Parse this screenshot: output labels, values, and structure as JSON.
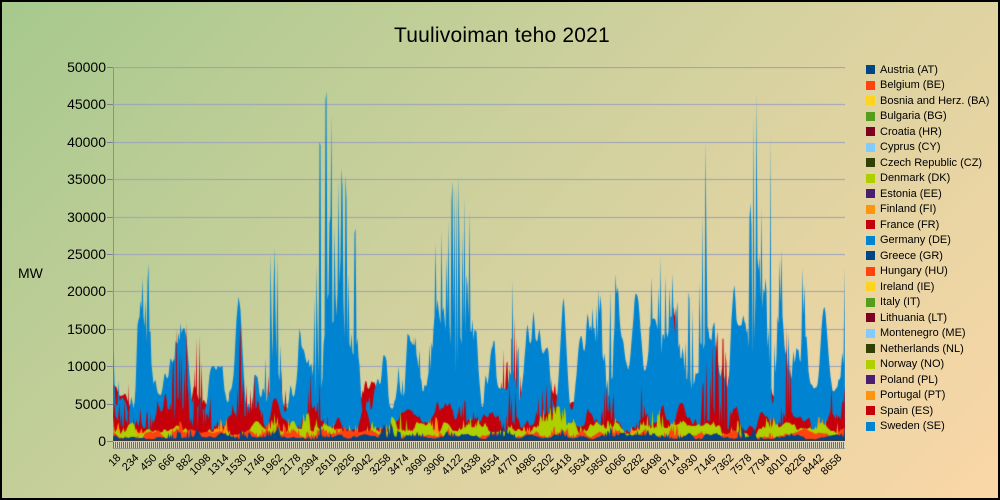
{
  "colors": {
    "bg_top_left": "#a6c98e",
    "bg_mid": "#d7d2a0",
    "bg_bottom_right": "#fbd7a7",
    "gridline": "#9aa0bb",
    "axis_line": "#8a8fa0",
    "text": "#000000",
    "frame_border": "#000000"
  },
  "chart_data": {
    "type": "area",
    "overlapping": true,
    "title": "Tuulivoiman teho 2021",
    "ylabel": "MW",
    "ylim": [
      0,
      50000
    ],
    "y_tick_step": 5000,
    "y_tick_labels": [
      "50000",
      "45000",
      "40000",
      "35000",
      "30000",
      "25000",
      "20000",
      "15000",
      "10000",
      "5000",
      "0"
    ],
    "x_tick_labels": [
      "18",
      "234",
      "450",
      "666",
      "882",
      "1098",
      "1314",
      "1530",
      "1746",
      "1962",
      "2178",
      "2394",
      "2610",
      "2826",
      "3042",
      "3258",
      "3474",
      "3690",
      "3906",
      "4122",
      "4338",
      "4554",
      "4770",
      "4986",
      "5202",
      "5418",
      "5634",
      "5850",
      "6066",
      "6282",
      "6498",
      "6714",
      "6930",
      "7146",
      "7362",
      "7578",
      "7794",
      "8010",
      "8226",
      "8442",
      "8658"
    ],
    "x_tick_interval_hours": 216,
    "hours_total": 8760,
    "grid": "horizontal",
    "legend_position": "right",
    "series": [
      {
        "label": "Austria (AT)",
        "code": "AT",
        "color": "#004586",
        "approx_mean_mw": 600,
        "approx_peak_mw": 2900
      },
      {
        "label": "Belgium (BE)",
        "code": "BE",
        "color": "#ff420e",
        "approx_mean_mw": 900,
        "approx_peak_mw": 2600
      },
      {
        "label": "Bosnia and Herz. (BA)",
        "code": "BA",
        "color": "#ffd320",
        "approx_mean_mw": 150,
        "approx_peak_mw": 500
      },
      {
        "label": "Bulgaria (BG)",
        "code": "BG",
        "color": "#579d1c",
        "approx_mean_mw": 150,
        "approx_peak_mw": 620
      },
      {
        "label": "Croatia (HR)",
        "code": "HR",
        "color": "#7e0021",
        "approx_mean_mw": 220,
        "approx_peak_mw": 700
      },
      {
        "label": "Cyprus (CY)",
        "code": "CY",
        "color": "#83caff",
        "approx_mean_mw": 20,
        "approx_peak_mw": 80
      },
      {
        "label": "Czech Republic (CZ)",
        "code": "CZ",
        "color": "#314004",
        "approx_mean_mw": 140,
        "approx_peak_mw": 580
      },
      {
        "label": "Denmark (DK)",
        "code": "DK",
        "color": "#aecf00",
        "approx_mean_mw": 1600,
        "approx_peak_mw": 4600
      },
      {
        "label": "Estonia (EE)",
        "code": "EE",
        "color": "#4b1f6f",
        "approx_mean_mw": 110,
        "approx_peak_mw": 320
      },
      {
        "label": "Finland (FI)",
        "code": "FI",
        "color": "#ff950e",
        "approx_mean_mw": 900,
        "approx_peak_mw": 3200
      },
      {
        "label": "France (FR)",
        "code": "FR",
        "color": "#c5000b",
        "approx_mean_mw": 3200,
        "approx_peak_mw": 16000
      },
      {
        "label": "Germany (DE)",
        "code": "DE",
        "color": "#0084d1",
        "approx_mean_mw": 11000,
        "approx_peak_mw": 46700
      },
      {
        "label": "Greece (GR)",
        "code": "GR",
        "color": "#004586",
        "approx_mean_mw": 1300,
        "approx_peak_mw": 3600
      },
      {
        "label": "Hungary (HU)",
        "code": "HU",
        "color": "#ff420e",
        "approx_mean_mw": 120,
        "approx_peak_mw": 330
      },
      {
        "label": "Ireland (IE)",
        "code": "IE",
        "color": "#ffd320",
        "approx_mean_mw": 1400,
        "approx_peak_mw": 4300
      },
      {
        "label": "Italy (IT)",
        "code": "IT",
        "color": "#579d1c",
        "approx_mean_mw": 1300,
        "approx_peak_mw": 3900
      },
      {
        "label": "Lithuania (LT)",
        "code": "LT",
        "color": "#7e0021",
        "approx_mean_mw": 220,
        "approx_peak_mw": 670
      },
      {
        "label": "Montenegro (ME)",
        "code": "ME",
        "color": "#83caff",
        "approx_mean_mw": 25,
        "approx_peak_mw": 100
      },
      {
        "label": "Netherlands (NL)",
        "code": "NL",
        "color": "#314004",
        "approx_mean_mw": 1700,
        "approx_peak_mw": 5800
      },
      {
        "label": "Norway (NO)",
        "code": "NO",
        "color": "#aecf00",
        "approx_mean_mw": 1300,
        "approx_peak_mw": 4200
      },
      {
        "label": "Poland (PL)",
        "code": "PL",
        "color": "#4b1f6f",
        "approx_mean_mw": 1500,
        "approx_peak_mw": 6000
      },
      {
        "label": "Portugal (PT)",
        "code": "PT",
        "color": "#ff950e",
        "approx_mean_mw": 1300,
        "approx_peak_mw": 4400
      },
      {
        "label": "Spain (ES)",
        "code": "ES",
        "color": "#c5000b",
        "approx_mean_mw": 4500,
        "approx_peak_mw": 17800
      },
      {
        "label": "Sweden (SE)",
        "code": "SE",
        "color": "#0084d1",
        "approx_mean_mw": 1900,
        "approx_peak_mw": 7000
      }
    ]
  }
}
